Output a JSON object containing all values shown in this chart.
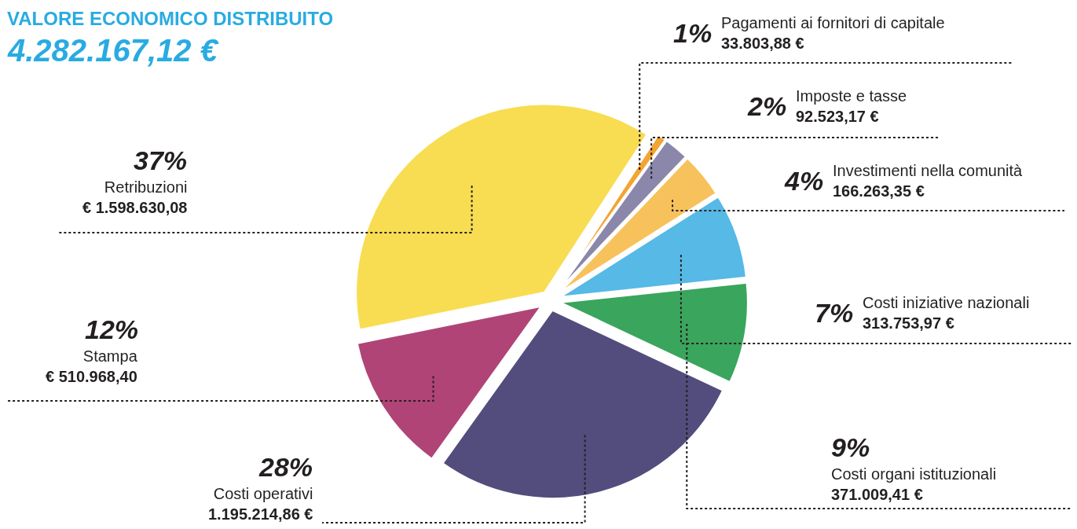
{
  "chart_data": {
    "type": "pie",
    "title": "VALORE ECONOMICO DISTRIBUITO",
    "subtitle": "4.282.167,12 €",
    "categories": [
      "Pagamenti ai fornitori di capitale",
      "Imposte e tasse",
      "Investimenti nella comunità",
      "Costi iniziative nazionali",
      "Costi organi istituzionali",
      "Costi operativi",
      "Stampa",
      "Retribuzioni"
    ],
    "values": [
      33803.88,
      92523.17,
      166263.35,
      313753.97,
      371009.41,
      1195214.86,
      510968.4,
      1598630.08
    ],
    "colors": [
      "#f2a531",
      "#8b87aa",
      "#f7c15c",
      "#56b9e6",
      "#3aa55d",
      "#524d7d",
      "#b04477",
      "#f8dd52"
    ],
    "value_labels": [
      "33.803,88 €",
      "92.523,17 €",
      "166.263,35 €",
      "313.753,97 €",
      "371.009,41 €",
      "1.195.214,86 €",
      "€ 510.968,40",
      "€ 1.598.630,08"
    ],
    "annotations": [
      "1%",
      "2%",
      "4%",
      "7%",
      "9%",
      "28%",
      "12%",
      "37%"
    ]
  }
}
